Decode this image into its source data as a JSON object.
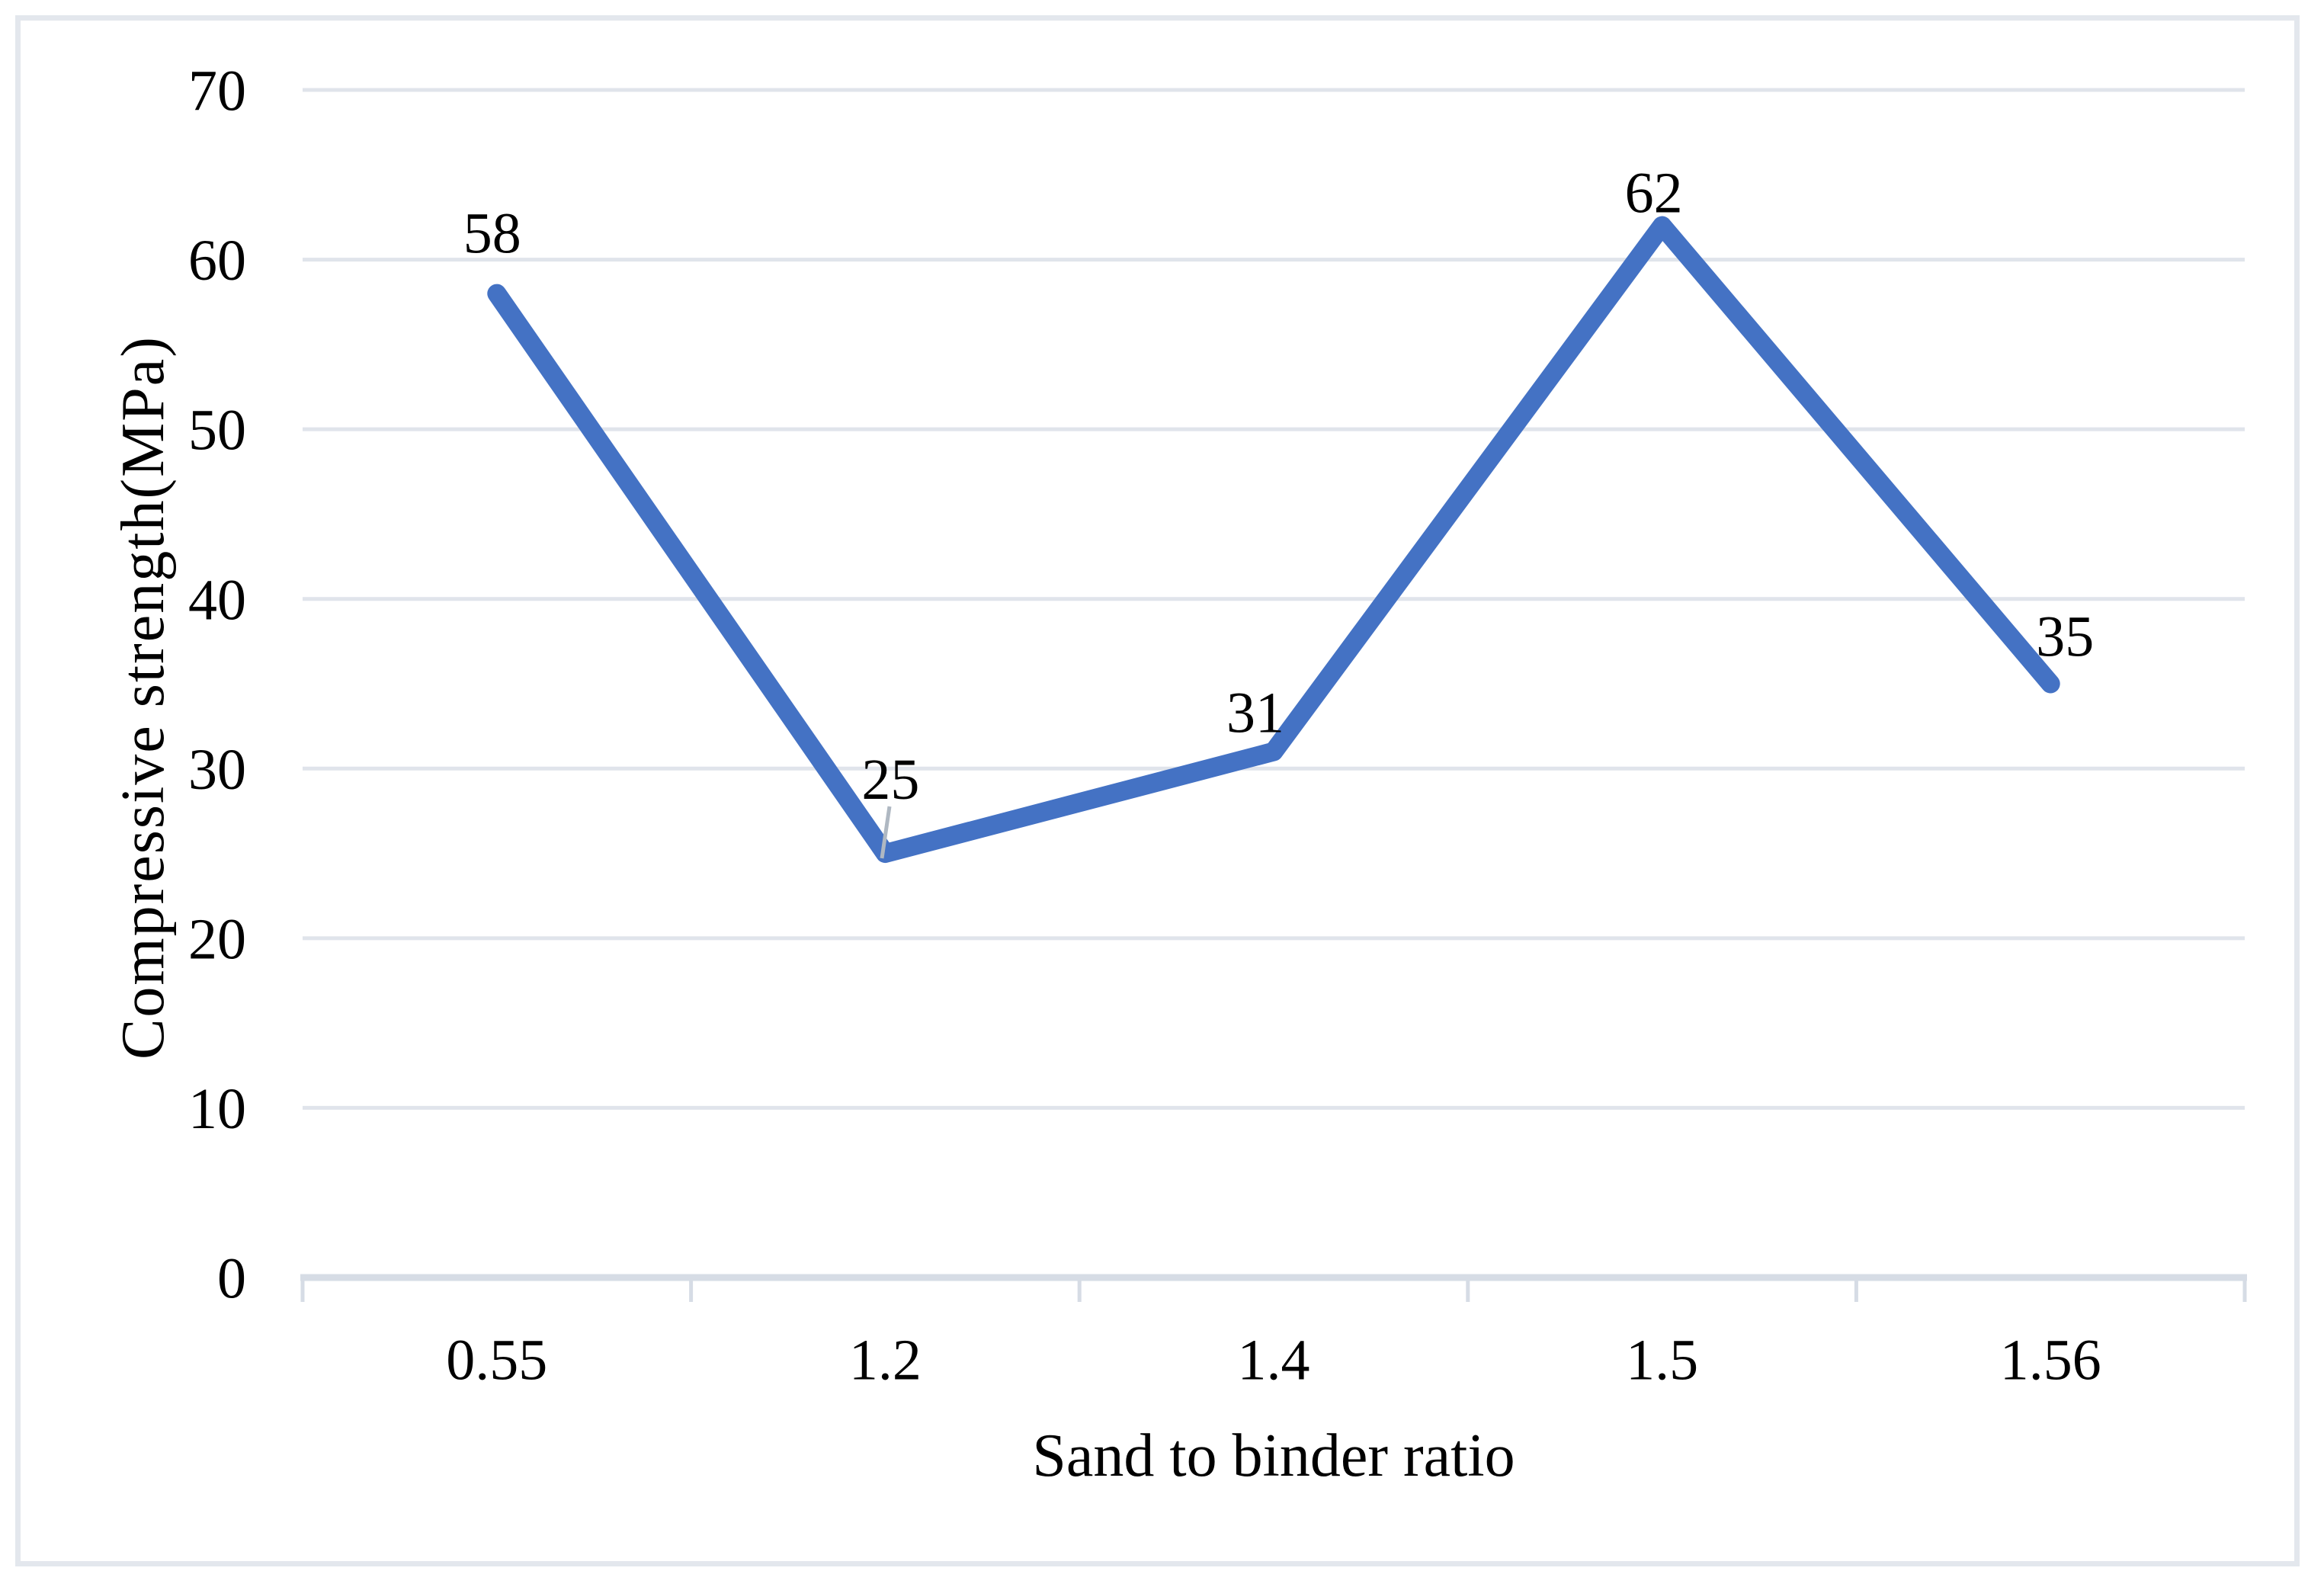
{
  "figure": {
    "border_color": "#E3E7ED",
    "background_color": "#FFFFFF"
  },
  "chart_data": {
    "type": "line",
    "title": "",
    "xlabel": "Sand to binder ratio",
    "ylabel": "Compressive strength(MPa)",
    "categories": [
      "0.55",
      "1.2",
      "1.4",
      "1.5",
      "1.56"
    ],
    "series": [
      {
        "name": "Compressive strength",
        "values": [
          58,
          25,
          31,
          62,
          35
        ]
      }
    ],
    "data_labels": [
      "58",
      "25",
      "31",
      "62",
      "35"
    ],
    "ylim": [
      0,
      70
    ],
    "yticks": [
      0,
      10,
      20,
      30,
      40,
      50,
      60,
      70
    ],
    "ytick_labels": [
      "0",
      "10",
      "20",
      "30",
      "40",
      "50",
      "60",
      "70"
    ],
    "grid": "horizontal-major",
    "legend": "none",
    "line_color": "#4472C4",
    "gridline_color": "#E0E4EB",
    "axis_line_color": "#D6DCE5",
    "leader_line_color": "#AFB8C2",
    "text_color": "#000000"
  }
}
